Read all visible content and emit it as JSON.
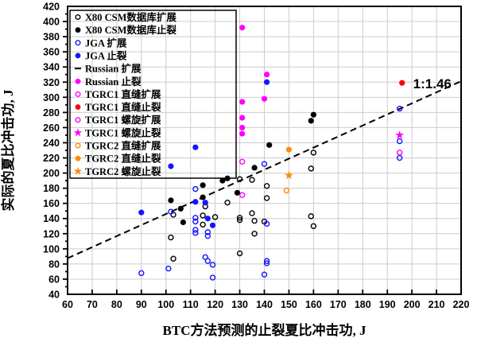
{
  "chart_data": {
    "type": "scatter",
    "title": "",
    "xlabel": "BTC方法预测的止裂夏比冲击功, J",
    "ylabel": "实际的夏比冲击功, J",
    "xlim": [
      60,
      220
    ],
    "ylim": [
      40,
      420
    ],
    "x_tick_step": 10,
    "y_tick_step": 20,
    "grid": true,
    "grid_color": "#cccccc",
    "legend_position": "top-left",
    "reference_line": {
      "label": "1:1.46",
      "slope": 1.46,
      "intercept": 0,
      "x_start": 60,
      "x_end": 220,
      "style": "dashed",
      "color": "#000000"
    },
    "annotation": {
      "text": "1:1.46",
      "x": 200.5,
      "y": 312
    },
    "series": [
      {
        "name": "X80 CSM数据库扩展",
        "marker": "circle-open",
        "color": "#000000",
        "points": [
          [
            102,
            115
          ],
          [
            103,
            87
          ],
          [
            103,
            145
          ],
          [
            115,
            132
          ],
          [
            115,
            144
          ],
          [
            116,
            156
          ],
          [
            120,
            142
          ],
          [
            125,
            161
          ],
          [
            130,
            94
          ],
          [
            130,
            138
          ],
          [
            130,
            141
          ],
          [
            130,
            192
          ],
          [
            135,
            147
          ],
          [
            135,
            191
          ],
          [
            136,
            120
          ],
          [
            136,
            137
          ],
          [
            140,
            136
          ],
          [
            141,
            167
          ],
          [
            141,
            183
          ],
          [
            159,
            143
          ],
          [
            159,
            206
          ],
          [
            160,
            130
          ],
          [
            160,
            227
          ]
        ]
      },
      {
        "name": "X80 CSM数据库止裂",
        "marker": "circle-filled",
        "color": "#000000",
        "points": [
          [
            102,
            164
          ],
          [
            106,
            153
          ],
          [
            107,
            135
          ],
          [
            115,
            168
          ],
          [
            115,
            184
          ],
          [
            123,
            190
          ],
          [
            125,
            193
          ],
          [
            129,
            174
          ],
          [
            136,
            207
          ],
          [
            142,
            237
          ],
          [
            159,
            269
          ],
          [
            160,
            277
          ]
        ]
      },
      {
        "name": "JGA 扩展",
        "marker": "circle-open",
        "color": "#1414ff",
        "points": [
          [
            90,
            68
          ],
          [
            101,
            74
          ],
          [
            102,
            149
          ],
          [
            112,
            121
          ],
          [
            112,
            125
          ],
          [
            112,
            136
          ],
          [
            112,
            141
          ],
          [
            112,
            179
          ],
          [
            116,
            89
          ],
          [
            117,
            84
          ],
          [
            117,
            117
          ],
          [
            117,
            122
          ],
          [
            119,
            62
          ],
          [
            119,
            79
          ],
          [
            140,
            66
          ],
          [
            140,
            212
          ],
          [
            141,
            81
          ],
          [
            141,
            84
          ],
          [
            141,
            133
          ],
          [
            195,
            220
          ],
          [
            195,
            242
          ],
          [
            195,
            285
          ]
        ]
      },
      {
        "name": "JGA 止裂",
        "marker": "circle-filled",
        "color": "#1414ff",
        "points": [
          [
            90,
            148
          ],
          [
            102,
            209
          ],
          [
            112,
            162
          ],
          [
            112,
            234
          ],
          [
            116,
            161
          ],
          [
            117,
            140
          ],
          [
            119,
            131
          ],
          [
            141,
            320
          ]
        ]
      },
      {
        "name": "Russian 扩展",
        "marker": "dash",
        "color": "#000000",
        "points": []
      },
      {
        "name": "Russian 止裂",
        "marker": "circle-filled",
        "color": "#ff00ff",
        "points": [
          [
            131,
            252
          ],
          [
            131,
            260
          ],
          [
            131,
            273
          ],
          [
            131,
            294
          ],
          [
            131,
            392
          ],
          [
            140,
            298
          ],
          [
            141,
            330
          ]
        ]
      },
      {
        "name": "TGRC1 直缝扩展",
        "marker": "circle-open",
        "color": "#ff00ff",
        "points": [
          [
            131,
            171
          ],
          [
            131,
            215
          ]
        ]
      },
      {
        "name": "TGRC1 直缝止裂",
        "marker": "circle-filled",
        "color": "#ff0000",
        "points": [
          [
            196,
            319
          ]
        ]
      },
      {
        "name": "TGRC1 螺旋扩展",
        "marker": "circle-open",
        "color": "#ff00ff",
        "points": [
          [
            195,
            227
          ]
        ]
      },
      {
        "name": "TGRC1 螺旋止裂",
        "marker": "star",
        "color": "#ff00ff",
        "points": [
          [
            195,
            250
          ]
        ]
      },
      {
        "name": "TGRC2 直缝扩展",
        "marker": "circle-open",
        "color": "#ff8c00",
        "points": [
          [
            149,
            177
          ]
        ]
      },
      {
        "name": "TGRC2 直缝止裂",
        "marker": "circle-filled",
        "color": "#ff8c00",
        "points": [
          [
            150,
            231
          ]
        ]
      },
      {
        "name": "TGRC2 螺旋止裂",
        "marker": "star",
        "color": "#ff8c00",
        "points": [
          [
            150,
            197
          ]
        ]
      }
    ],
    "x_ticks": [
      60,
      70,
      80,
      90,
      100,
      110,
      120,
      130,
      140,
      150,
      160,
      170,
      180,
      190,
      200,
      210,
      220
    ],
    "y_ticks": [
      40,
      60,
      80,
      100,
      120,
      140,
      160,
      180,
      200,
      220,
      240,
      260,
      280,
      300,
      320,
      340,
      360,
      380,
      400,
      420
    ]
  }
}
